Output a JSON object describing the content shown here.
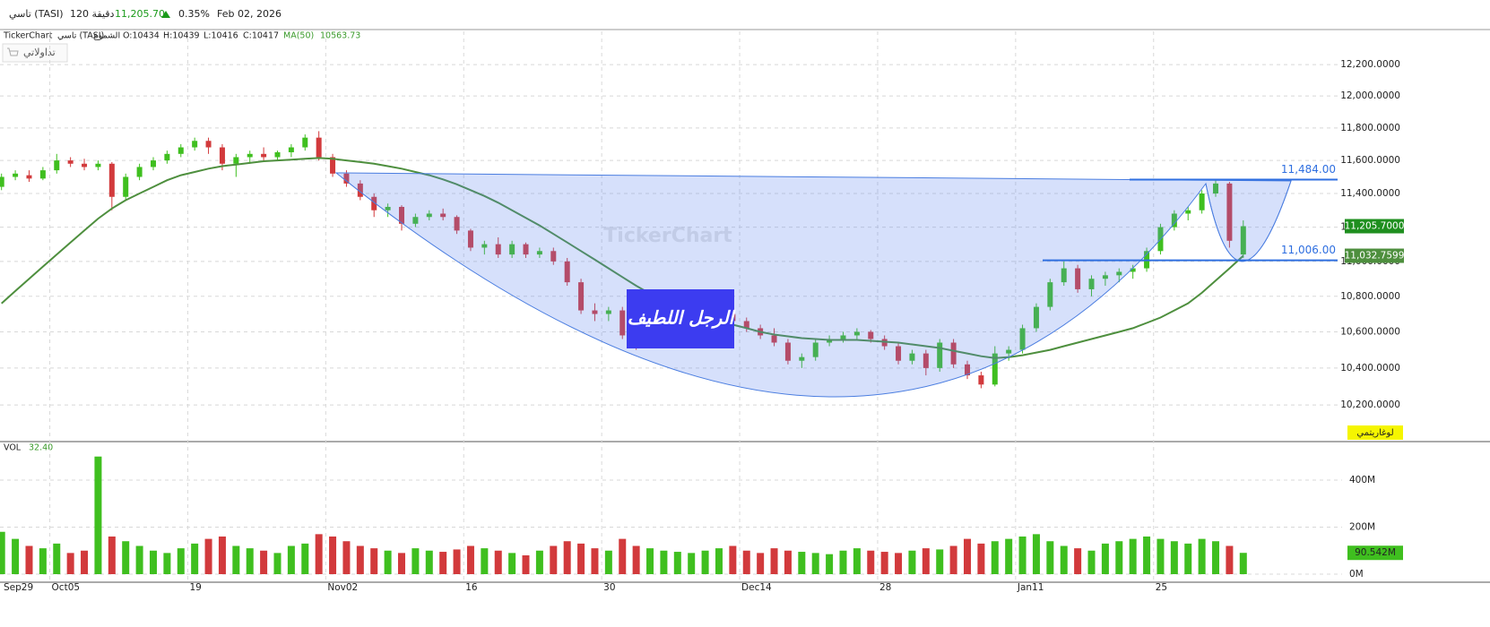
{
  "header": {
    "symbol": "تاسي (TASI)",
    "interval": "120 دقيقة",
    "price": "11,205.70",
    "change": "0.35%",
    "date": "Feb 02, 2026"
  },
  "legend": {
    "source": "TickerChart",
    "symbol": "تاسي (TASI)",
    "style": "الشموع",
    "open": "O:10434",
    "high": "H:10439",
    "low": "L:10416",
    "close": "C:10417",
    "ma_value": "10563.73"
  },
  "toolbar": {
    "portfolio": "تداولاتي",
    "log_button": "لوغاريتمي"
  },
  "chart_data": [
    {
      "type": "candlestick",
      "watermark": "TickerChart",
      "annotation": "الرجل اللطيف",
      "categories": [
        "Sep29",
        null,
        null,
        null,
        "Oct05",
        null,
        null,
        null,
        null,
        null,
        null,
        null,
        null,
        null,
        "19",
        null,
        null,
        null,
        null,
        null,
        null,
        null,
        null,
        null,
        "Nov02",
        null,
        null,
        null,
        null,
        null,
        null,
        null,
        null,
        null,
        "16",
        null,
        null,
        null,
        null,
        null,
        null,
        null,
        null,
        null,
        "30",
        null,
        null,
        null,
        null,
        null,
        null,
        null,
        null,
        null,
        "Dec14",
        null,
        null,
        null,
        null,
        null,
        null,
        null,
        null,
        null,
        "28",
        null,
        null,
        null,
        null,
        null,
        null,
        null,
        null,
        null,
        "Jan11",
        null,
        null,
        null,
        null,
        null,
        null,
        null,
        null,
        null,
        "25",
        null,
        null,
        null,
        null,
        null,
        null
      ],
      "ohlc": [
        [
          11440,
          11520,
          11420,
          11500
        ],
        [
          11500,
          11540,
          11480,
          11520
        ],
        [
          11510,
          11540,
          11470,
          11490
        ],
        [
          11490,
          11560,
          11480,
          11540
        ],
        [
          11540,
          11640,
          11520,
          11600
        ],
        [
          11600,
          11620,
          11560,
          11580
        ],
        [
          11580,
          11610,
          11540,
          11560
        ],
        [
          11560,
          11600,
          11540,
          11580
        ],
        [
          11580,
          11590,
          11300,
          11380
        ],
        [
          11380,
          11520,
          11360,
          11500
        ],
        [
          11500,
          11580,
          11480,
          11560
        ],
        [
          11560,
          11620,
          11540,
          11600
        ],
        [
          11600,
          11660,
          11580,
          11640
        ],
        [
          11640,
          11700,
          11620,
          11680
        ],
        [
          11680,
          11740,
          11660,
          11720
        ],
        [
          11720,
          11740,
          11640,
          11680
        ],
        [
          11680,
          11700,
          11540,
          11580
        ],
        [
          11580,
          11640,
          11500,
          11620
        ],
        [
          11620,
          11660,
          11580,
          11640
        ],
        [
          11640,
          11680,
          11600,
          11620
        ],
        [
          11620,
          11660,
          11600,
          11650
        ],
        [
          11650,
          11700,
          11620,
          11680
        ],
        [
          11680,
          11760,
          11660,
          11740
        ],
        [
          11740,
          11780,
          11600,
          11620
        ],
        [
          11620,
          11640,
          11500,
          11520
        ],
        [
          11520,
          11540,
          11440,
          11460
        ],
        [
          11460,
          11480,
          11360,
          11380
        ],
        [
          11380,
          11400,
          11260,
          11300
        ],
        [
          11300,
          11340,
          11260,
          11320
        ],
        [
          11320,
          11330,
          11180,
          11220
        ],
        [
          11220,
          11280,
          11200,
          11260
        ],
        [
          11260,
          11300,
          11240,
          11280
        ],
        [
          11280,
          11310,
          11240,
          11260
        ],
        [
          11260,
          11270,
          11160,
          11180
        ],
        [
          11180,
          11190,
          11060,
          11080
        ],
        [
          11080,
          11120,
          11040,
          11100
        ],
        [
          11100,
          11140,
          11020,
          11040
        ],
        [
          11040,
          11120,
          11020,
          11100
        ],
        [
          11100,
          11110,
          11020,
          11040
        ],
        [
          11040,
          11080,
          11020,
          11060
        ],
        [
          11060,
          11080,
          10980,
          11000
        ],
        [
          11000,
          11020,
          10860,
          10880
        ],
        [
          10880,
          10900,
          10700,
          10720
        ],
        [
          10720,
          10760,
          10660,
          10700
        ],
        [
          10700,
          10740,
          10660,
          10720
        ],
        [
          10720,
          10740,
          10560,
          10580
        ],
        [
          10580,
          10600,
          10500,
          10540
        ],
        [
          10540,
          10580,
          10520,
          10560
        ],
        [
          10560,
          10620,
          10540,
          10600
        ],
        [
          10600,
          10660,
          10580,
          10640
        ],
        [
          10640,
          10680,
          10600,
          10660
        ],
        [
          10660,
          10700,
          10640,
          10680
        ],
        [
          10680,
          10720,
          10660,
          10700
        ],
        [
          10700,
          10720,
          10640,
          10660
        ],
        [
          10660,
          10680,
          10600,
          10620
        ],
        [
          10620,
          10640,
          10560,
          10580
        ],
        [
          10580,
          10620,
          10520,
          10540
        ],
        [
          10540,
          10560,
          10420,
          10440
        ],
        [
          10440,
          10480,
          10400,
          10460
        ],
        [
          10460,
          10560,
          10440,
          10540
        ],
        [
          10540,
          10580,
          10520,
          10560
        ],
        [
          10560,
          10600,
          10540,
          10580
        ],
        [
          10580,
          10620,
          10560,
          10600
        ],
        [
          10600,
          10610,
          10540,
          10560
        ],
        [
          10560,
          10580,
          10500,
          10520
        ],
        [
          10520,
          10540,
          10420,
          10440
        ],
        [
          10440,
          10500,
          10420,
          10480
        ],
        [
          10480,
          10500,
          10360,
          10400
        ],
        [
          10400,
          10560,
          10380,
          10540
        ],
        [
          10540,
          10560,
          10400,
          10420
        ],
        [
          10420,
          10440,
          10340,
          10360
        ],
        [
          10360,
          10380,
          10290,
          10310
        ],
        [
          10310,
          10520,
          10300,
          10480
        ],
        [
          10480,
          10520,
          10440,
          10500
        ],
        [
          10500,
          10640,
          10480,
          10620
        ],
        [
          10620,
          10760,
          10600,
          10740
        ],
        [
          10740,
          10900,
          10720,
          10880
        ],
        [
          10880,
          11000,
          10860,
          10960
        ],
        [
          10960,
          10980,
          10820,
          10840
        ],
        [
          10840,
          10920,
          10800,
          10900
        ],
        [
          10900,
          10940,
          10860,
          10920
        ],
        [
          10920,
          10960,
          10880,
          10940
        ],
        [
          10940,
          10980,
          10900,
          10960
        ],
        [
          10960,
          11080,
          10940,
          11060
        ],
        [
          11060,
          11220,
          11040,
          11200
        ],
        [
          11200,
          11300,
          11180,
          11280
        ],
        [
          11280,
          11320,
          11240,
          11300
        ],
        [
          11300,
          11420,
          11280,
          11400
        ],
        [
          11400,
          11480,
          11380,
          11460
        ],
        [
          11460,
          11470,
          11080,
          11120
        ],
        [
          11040,
          11240,
          11020,
          11205.7
        ]
      ],
      "up_color": "#3fbf1f",
      "down_color": "#d23a3c",
      "ma": {
        "name": "MA(50)",
        "color": "#4e8f3e",
        "values": [
          10760,
          10830,
          10900,
          10970,
          11040,
          11110,
          11180,
          11250,
          11310,
          11360,
          11400,
          11440,
          11480,
          11510,
          11530,
          11550,
          11565,
          11575,
          11585,
          11595,
          11600,
          11605,
          11610,
          11615,
          11610,
          11600,
          11590,
          11580,
          11565,
          11550,
          11530,
          11510,
          11485,
          11455,
          11420,
          11385,
          11345,
          11300,
          11255,
          11210,
          11160,
          11110,
          11060,
          11010,
          10960,
          10910,
          10860,
          10815,
          10770,
          10730,
          10700,
          10680,
          10660,
          10640,
          10620,
          10600,
          10585,
          10575,
          10565,
          10560,
          10555,
          10555,
          10555,
          10550,
          10545,
          10540,
          10530,
          10520,
          10510,
          10495,
          10480,
          10465,
          10455,
          10460,
          10470,
          10485,
          10500,
          10520,
          10540,
          10560,
          10580,
          10600,
          10620,
          10650,
          10680,
          10720,
          10760,
          10820,
          10890,
          10960,
          11032.7599
        ]
      },
      "ylim": [
        10010,
        12415
      ],
      "log_scale": true,
      "grid": true,
      "yticks": [
        {
          "value": 10200,
          "label": "10,200.0000"
        },
        {
          "value": 10400,
          "label": "10,400.0000"
        },
        {
          "value": 10600,
          "label": "10,600.0000"
        },
        {
          "value": 10800,
          "label": "10,800.0000"
        },
        {
          "value": 11000,
          "label": "11,000.0000"
        },
        {
          "value": 11200,
          "label": "11,200.0000"
        },
        {
          "value": 11400,
          "label": "11,400.0000"
        },
        {
          "value": 11600,
          "label": "11,600.0000"
        },
        {
          "value": 11800,
          "label": "11,800.0000"
        },
        {
          "value": 12000,
          "label": "12,000.0000"
        },
        {
          "value": 12200,
          "label": "12,200.0000"
        }
      ],
      "hlines": [
        {
          "value": 11484,
          "label": "11,484.00",
          "color": "#2f6fe0"
        },
        {
          "value": 11006,
          "label": "11,006.00",
          "color": "#2f6fe0"
        }
      ],
      "last_price_label": "11,205.7000",
      "ma_last_label": "11,032.7599"
    },
    {
      "type": "bar",
      "name": "VOL",
      "indicator_value": "32.40",
      "values": [
        180,
        150,
        120,
        110,
        130,
        90,
        100,
        500,
        160,
        140,
        120,
        100,
        90,
        110,
        130,
        150,
        160,
        120,
        110,
        100,
        90,
        120,
        130,
        170,
        160,
        140,
        120,
        110,
        100,
        90,
        110,
        100,
        95,
        105,
        120,
        110,
        100,
        90,
        80,
        100,
        120,
        140,
        130,
        110,
        100,
        150,
        120,
        110,
        100,
        95,
        90,
        100,
        110,
        120,
        100,
        90,
        110,
        100,
        95,
        90,
        85,
        100,
        110,
        100,
        95,
        90,
        100,
        110,
        105,
        120,
        150,
        130,
        140,
        150,
        160,
        170,
        140,
        120,
        110,
        100,
        130,
        140,
        150,
        160,
        150,
        140,
        130,
        150,
        140,
        120,
        90.542
      ],
      "ylim": [
        0,
        556
      ],
      "yticks": [
        {
          "value": 0,
          "label": "0M"
        },
        {
          "value": 200,
          "label": "200M"
        },
        {
          "value": 400,
          "label": "400M"
        }
      ],
      "last_value_label": "90.542M"
    }
  ]
}
